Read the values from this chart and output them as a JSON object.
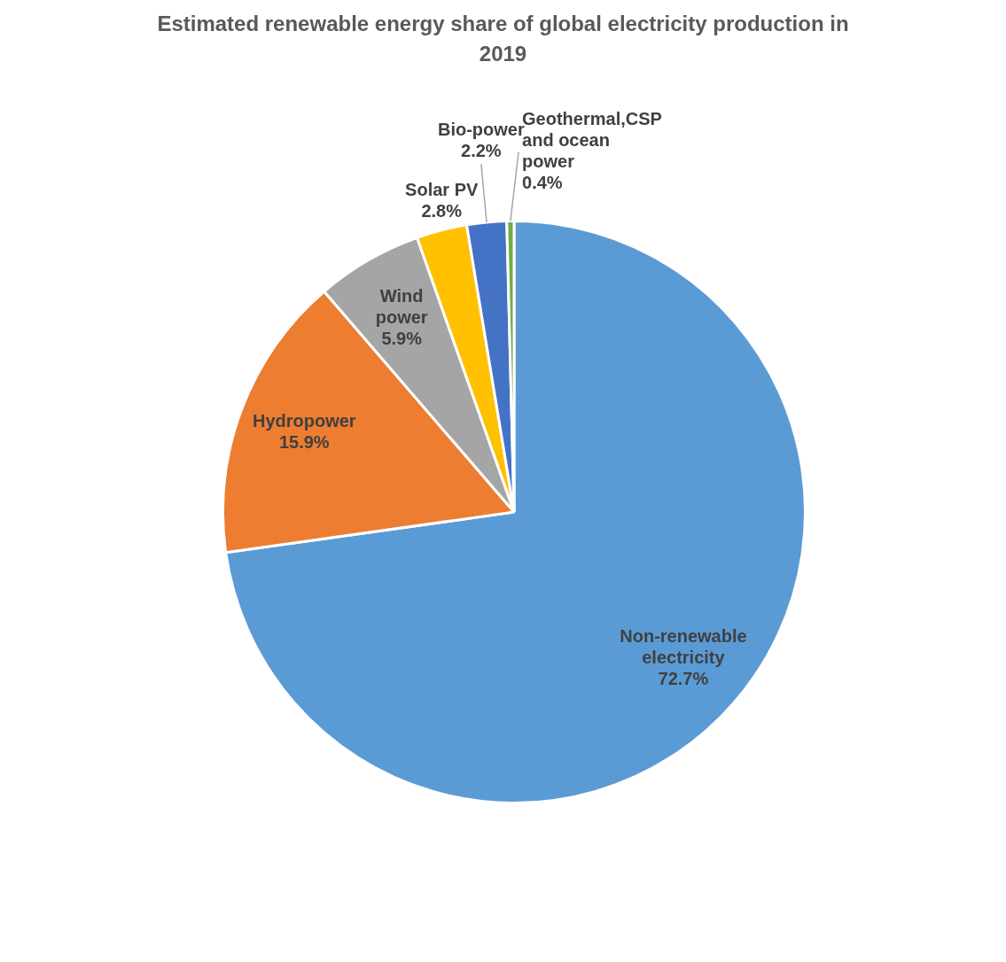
{
  "chart_data": {
    "type": "pie",
    "title": "Estimated renewable energy share of global electricity production in 2019",
    "categories": [
      "Non-renewable electricity",
      "Hydropower",
      "Wind power",
      "Solar PV",
      "Bio-power",
      "Geothermal,CSP and ocean power"
    ],
    "values": [
      72.7,
      15.9,
      5.9,
      2.8,
      2.2,
      0.4
    ],
    "colors": [
      "#5b9bd5",
      "#ed7d31",
      "#a5a5a5",
      "#ffc000",
      "#4472c4",
      "#70ad47"
    ],
    "value_labels": [
      "72.7%",
      "15.9%",
      "5.9%",
      "2.8%",
      "2.2%",
      "0.4%"
    ],
    "legend": false
  }
}
